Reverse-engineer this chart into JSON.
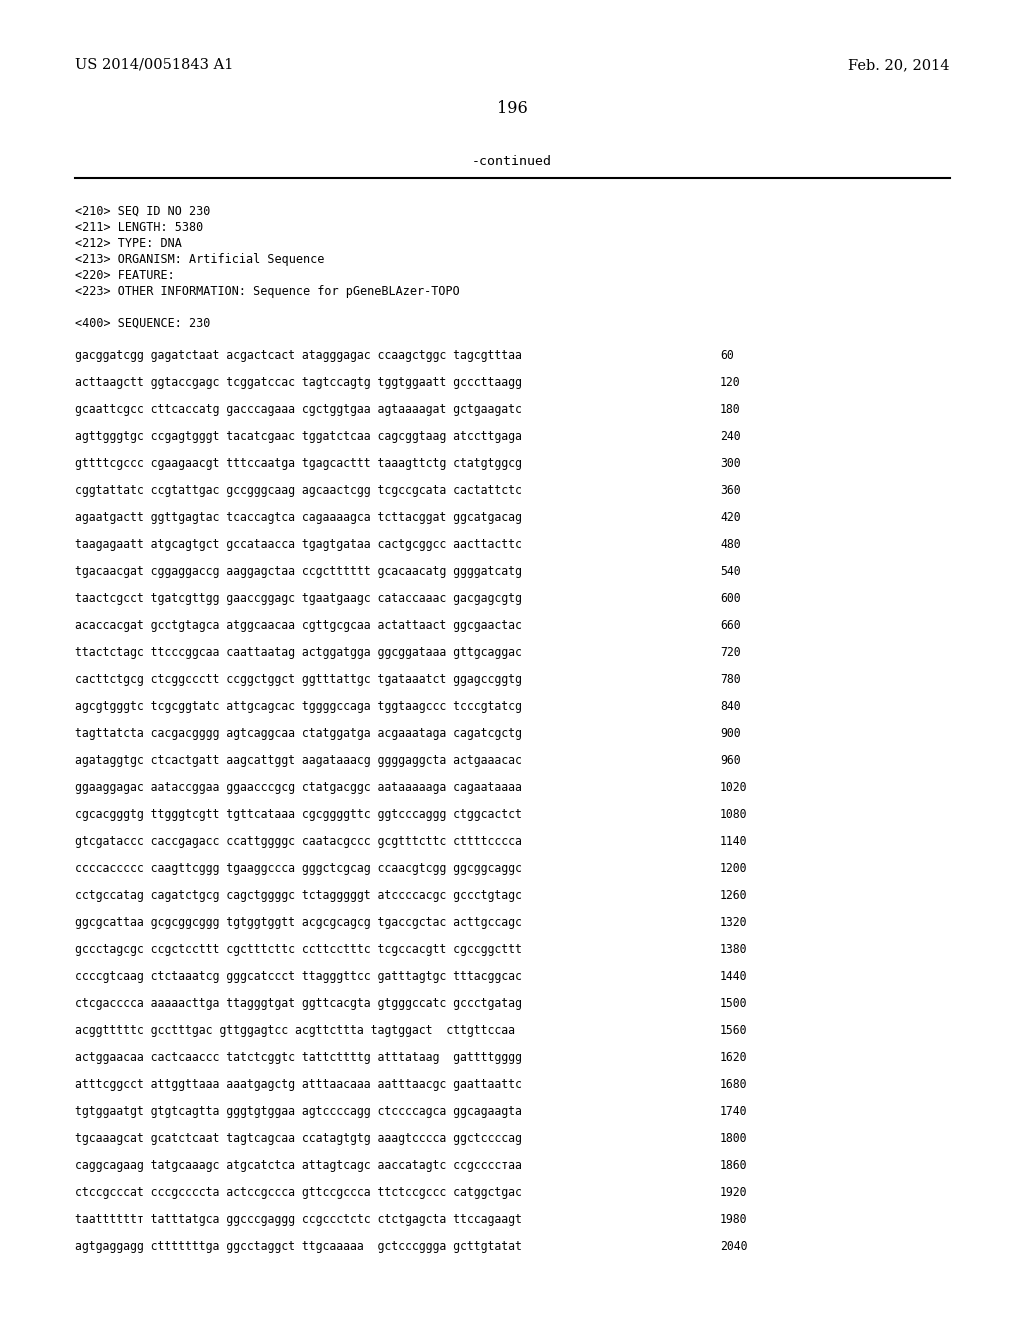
{
  "top_left": "US 2014/0051843 A1",
  "top_right": "Feb. 20, 2014",
  "page_number": "196",
  "continued_label": "-continued",
  "header_info": [
    "<210> SEQ ID NO 230",
    "<211> LENGTH: 5380",
    "<212> TYPE: DNA",
    "<213> ORGANISM: Artificial Sequence",
    "<220> FEATURE:",
    "<223> OTHER INFORMATION: Sequence for pGeneBLAzer-TOPO"
  ],
  "sequence_label": "<400> SEQUENCE: 230",
  "sequence_lines": [
    [
      "gacggatcgg gagatctaat acgactcact atagggagac ccaagctggc tagcgtttaa",
      "60"
    ],
    [
      "acttaagctt ggtaccgagc tcggatccac tagtccagtg tggtggaatt gcccttaagg",
      "120"
    ],
    [
      "gcaattcgcc cttcaccatg gacccagaaa cgctggtgaa agtaaaagat gctgaagatc",
      "180"
    ],
    [
      "agttgggtgc ccgagtgggt tacatcgaac tggatctcaa cagcggtaag atccttgaga",
      "240"
    ],
    [
      "gttttcgccc cgaagaacgt tttccaatga tgagcacttt taaagttctg ctatgtggcg",
      "300"
    ],
    [
      "cggtattatc ccgtattgac gccgggcaag agcaactcgg tcgccgcata cactattctc",
      "360"
    ],
    [
      "agaatgactt ggttgagtac tcaccagtca cagaaaagca tcttacggat ggcatgacag",
      "420"
    ],
    [
      "taagagaatt atgcagtgct gccataacca tgagtgataa cactgcggcc aacttacttc",
      "480"
    ],
    [
      "tgacaacgat cggaggaccg aaggagctaa ccgctttttt gcacaacatg ggggatcatg",
      "540"
    ],
    [
      "taactcgcct tgatcgttgg gaaccggagc tgaatgaagc cataccaaac gacgagcgtg",
      "600"
    ],
    [
      "acaccacgat gcctgtagca atggcaacaa cgttgcgcaa actattaact ggcgaactac",
      "660"
    ],
    [
      "ttactctagc ttcccggcaa caattaatag actggatgga ggcggataaa gttgcaggac",
      "720"
    ],
    [
      "cacttctgcg ctcggccctt ccggctggct ggtttattgc tgataaatct ggagccggtg",
      "780"
    ],
    [
      "agcgtgggtc tcgcggtatc attgcagcac tggggccaga tggtaagccc tcccgtatcg",
      "840"
    ],
    [
      "tagttatcta cacgacgggg agtcaggcaa ctatggatga acgaaataga cagatcgctg",
      "900"
    ],
    [
      "agataggtgc ctcactgatt aagcattggt aagataaacg ggggaggcta actgaaacac",
      "960"
    ],
    [
      "ggaaggagac aataccggaa ggaacccgcg ctatgacggc aataaaaaga cagaataaaa",
      "1020"
    ],
    [
      "cgcacgggtg ttgggtcgtt tgttcataaa cgcggggttc ggtcccaggg ctggcactct",
      "1080"
    ],
    [
      "gtcgataccc caccgagacc ccattggggc caatacgccc gcgtttcttc cttttcccca",
      "1140"
    ],
    [
      "ccccaccccc caagttcggg tgaaggccca gggctcgcag ccaacgtcgg ggcggcaggc",
      "1200"
    ],
    [
      "cctgccatag cagatctgcg cagctggggc tctagggggt atccccacgc gccctgtagc",
      "1260"
    ],
    [
      "ggcgcattaa gcgcggcggg tgtggtggtt acgcgcagcg tgaccgctac acttgccagc",
      "1320"
    ],
    [
      "gccctagcgc ccgctccttt cgctttcttc ccttcctttc tcgccacgtt cgccggcttt",
      "1380"
    ],
    [
      "ccccgtcaag ctctaaatcg gggcatccct ttagggttcc gatttagtgc tttacggcac",
      "1440"
    ],
    [
      "ctcgacccca aaaaacttga ttagggtgat ggttcacgta gtgggccatc gccctgatag",
      "1500"
    ],
    [
      "acggtttttc gcctttgac gttggagtcc acgttcttta tagtggact  cttgttccaa",
      "1560"
    ],
    [
      "actggaacaa cactcaaccc tatctcggtc tattcttttg atttataag  gattttgggg",
      "1620"
    ],
    [
      "atttcggcct attggttaaa aaatgagctg atttaacaaa aatttaacgc gaattaattc",
      "1680"
    ],
    [
      "tgtggaatgt gtgtcagtta gggtgtggaa agtccccagg ctccccagca ggcagaagta",
      "1740"
    ],
    [
      "tgcaaagcat gcatctcaat tagtcagcaa ccatagtgtg aaagtcccca ggctccccag",
      "1800"
    ],
    [
      "caggcagaag tatgcaaagc atgcatctca attagtcagc aaccatagtc ccgccccтaa",
      "1860"
    ],
    [
      "ctccgcccat cccgcccctа actccgccca gttccgccca ttctccgccc catggctgac",
      "1920"
    ],
    [
      "taattttttт tatttatgca ggcccgaggg ccgccctctc ctctgagcta ttccagaagt",
      "1980"
    ],
    [
      "agtgaggagg ctttttttga ggcctaggct ttgcaaaaa  gctcccggga gcttgtatat",
      "2040"
    ]
  ],
  "bg_color": "#ffffff",
  "text_color": "#000000",
  "line_color": "#000000",
  "font_size_top": 10.5,
  "font_size_page": 11.5,
  "font_size_continued": 9.5,
  "font_size_header": 8.5,
  "font_size_seq": 8.3,
  "mono_font": "DejaVu Sans Mono",
  "serif_font": "DejaVu Serif"
}
